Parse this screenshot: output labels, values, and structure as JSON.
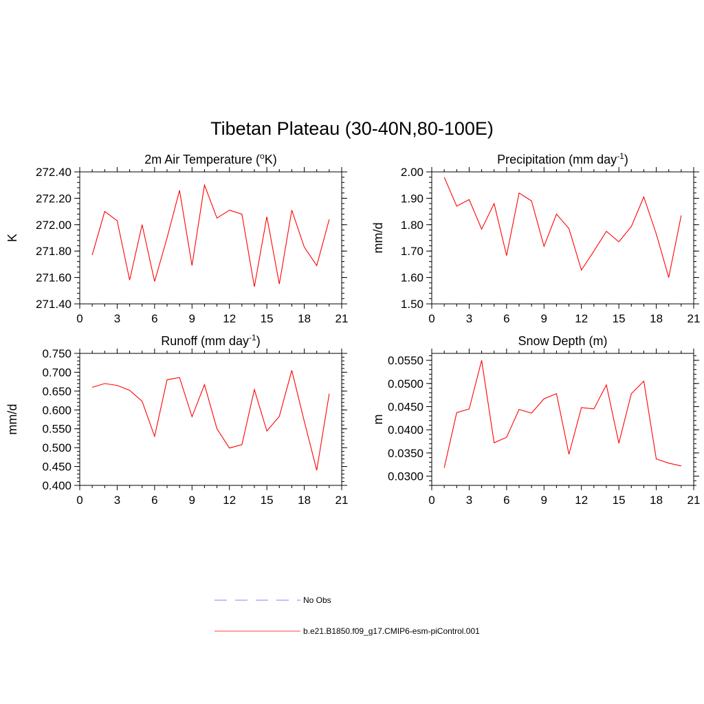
{
  "figure": {
    "title": "Tibetan Plateau (30-40N,80-100E)"
  },
  "legend": {
    "items": [
      {
        "label": "No Obs",
        "color": "#9999ff",
        "dashed": true
      },
      {
        "label": "b.e21.B1850.f09_g17.CMIP6-esm-piControl.001",
        "color": "#ff6666",
        "dashed": false
      }
    ]
  },
  "colors": {
    "series": "#ff0000",
    "axis": "#000000"
  },
  "chart_data": [
    {
      "type": "line",
      "title": "2m Air Temperature (oK)",
      "title_parts": {
        "pre": "2m Air Temperature (",
        "sup": "o",
        "post": "K)"
      },
      "ylabel": "K",
      "xlim": [
        0,
        21
      ],
      "ylim": [
        271.4,
        272.4
      ],
      "xticks": [
        "0",
        "3",
        "6",
        "9",
        "12",
        "15",
        "18",
        "21"
      ],
      "yticks": [
        "271.40",
        "271.60",
        "271.80",
        "272.00",
        "272.20",
        "272.40"
      ],
      "x": [
        1,
        2,
        3,
        4,
        5,
        6,
        7,
        8,
        9,
        10,
        11,
        12,
        13,
        14,
        15,
        16,
        17,
        18,
        19,
        20
      ],
      "series": [
        {
          "name": "b.e21.B1850.f09_g17.CMIP6-esm-piControl.001",
          "values": [
            271.77,
            272.1,
            272.03,
            271.58,
            272.0,
            271.57,
            271.9,
            272.26,
            271.69,
            272.3,
            272.05,
            272.11,
            272.08,
            271.53,
            272.06,
            271.55,
            272.11,
            271.83,
            271.69,
            272.04
          ]
        }
      ]
    },
    {
      "type": "line",
      "title": "Precipitation (mm day-1)",
      "title_parts": {
        "pre": "Precipitation (mm day",
        "sup": "-1",
        "post": ")"
      },
      "ylabel": "mm/d",
      "xlim": [
        0,
        21
      ],
      "ylim": [
        1.5,
        2.0
      ],
      "xticks": [
        "0",
        "3",
        "6",
        "9",
        "12",
        "15",
        "18",
        "21"
      ],
      "yticks": [
        "1.50",
        "1.60",
        "1.70",
        "1.80",
        "1.90",
        "2.00"
      ],
      "x": [
        1,
        2,
        3,
        4,
        5,
        6,
        7,
        8,
        9,
        10,
        11,
        12,
        13,
        14,
        15,
        16,
        17,
        18,
        19,
        20
      ],
      "series": [
        {
          "name": "b.e21.B1850.f09_g17.CMIP6-esm-piControl.001",
          "values": [
            1.98,
            1.87,
            1.895,
            1.783,
            1.88,
            1.683,
            1.92,
            1.89,
            1.718,
            1.84,
            1.785,
            1.628,
            1.7,
            1.775,
            1.735,
            1.793,
            1.905,
            1.765,
            1.6,
            1.835
          ]
        }
      ]
    },
    {
      "type": "line",
      "title": "Runoff (mm day-1)",
      "title_parts": {
        "pre": "Runoff (mm day",
        "sup": "-1",
        "post": ")"
      },
      "ylabel": "mm/d",
      "xlim": [
        0,
        21
      ],
      "ylim": [
        0.4,
        0.75
      ],
      "xticks": [
        "0",
        "3",
        "6",
        "9",
        "12",
        "15",
        "18",
        "21"
      ],
      "yticks": [
        "0.400",
        "0.450",
        "0.500",
        "0.550",
        "0.600",
        "0.650",
        "0.700",
        "0.750"
      ],
      "x": [
        1,
        2,
        3,
        4,
        5,
        6,
        7,
        8,
        9,
        10,
        11,
        12,
        13,
        14,
        15,
        16,
        17,
        18,
        19,
        20
      ],
      "series": [
        {
          "name": "b.e21.B1850.f09_g17.CMIP6-esm-piControl.001",
          "values": [
            0.66,
            0.67,
            0.665,
            0.652,
            0.623,
            0.53,
            0.68,
            0.686,
            0.582,
            0.667,
            0.55,
            0.499,
            0.508,
            0.654,
            0.544,
            0.583,
            0.705,
            0.57,
            0.44,
            0.643
          ]
        }
      ]
    },
    {
      "type": "line",
      "title": "Snow Depth (m)",
      "title_parts": {
        "pre": "Snow Depth (m)",
        "sup": "",
        "post": ""
      },
      "ylabel": "m",
      "xlim": [
        0,
        21
      ],
      "ylim": [
        0.028,
        0.0565
      ],
      "xticks": [
        "0",
        "3",
        "6",
        "9",
        "12",
        "15",
        "18",
        "21"
      ],
      "yticks": [
        "0.0300",
        "0.0350",
        "0.0400",
        "0.0450",
        "0.0500",
        "0.0550"
      ],
      "x": [
        1,
        2,
        3,
        4,
        5,
        6,
        7,
        8,
        9,
        10,
        11,
        12,
        13,
        14,
        15,
        16,
        17,
        18,
        19,
        20
      ],
      "series": [
        {
          "name": "b.e21.B1850.f09_g17.CMIP6-esm-piControl.001",
          "values": [
            0.0318,
            0.0437,
            0.0445,
            0.055,
            0.0372,
            0.0384,
            0.0444,
            0.0436,
            0.0467,
            0.0478,
            0.0347,
            0.0448,
            0.0445,
            0.0497,
            0.0371,
            0.0478,
            0.0505,
            0.0337,
            0.0328,
            0.0322
          ]
        }
      ]
    }
  ]
}
